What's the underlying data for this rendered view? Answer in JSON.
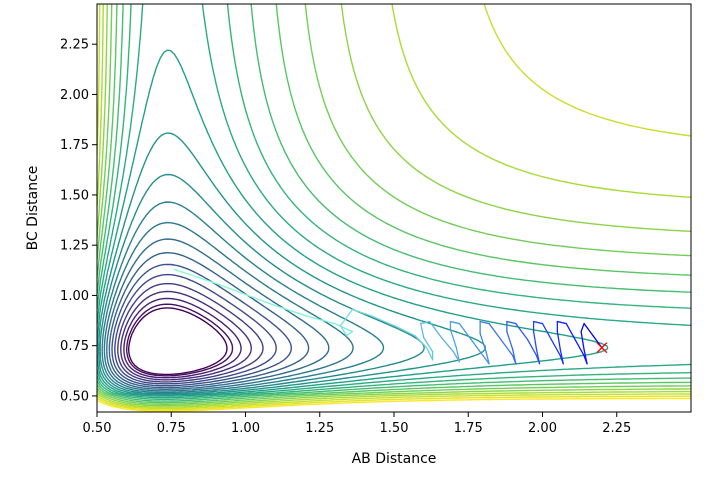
{
  "chart_data": {
    "type": "contour",
    "title": "",
    "xlabel": "AB Distance",
    "ylabel": "BC Distance",
    "xlim": [
      0.5,
      2.5
    ],
    "ylim": [
      0.42,
      2.45
    ],
    "xticks": [
      "0.50",
      "0.75",
      "1.00",
      "1.25",
      "1.50",
      "1.75",
      "2.00",
      "2.25"
    ],
    "yticks": [
      "0.50",
      "0.75",
      "1.00",
      "1.25",
      "1.50",
      "1.75",
      "2.00",
      "2.25"
    ],
    "grid": false,
    "legend": "none",
    "colormap": "viridis",
    "contour_levels": 24,
    "trajectory": {
      "start": [
        0.76,
        1.13
      ],
      "end": [
        2.2,
        0.74
      ],
      "marker": "x",
      "marker_color": "#ff0000",
      "color_start": "#7fffd4",
      "color_end": "#0000ff",
      "points": [
        [
          0.76,
          1.13
        ],
        [
          0.9,
          1.06
        ],
        [
          1.08,
          0.96
        ],
        [
          1.2,
          0.9
        ],
        [
          1.3,
          0.86
        ],
        [
          1.36,
          0.82
        ],
        [
          1.34,
          0.8
        ],
        [
          1.32,
          0.85
        ],
        [
          1.36,
          0.93
        ],
        [
          1.42,
          0.9
        ],
        [
          1.5,
          0.85
        ],
        [
          1.57,
          0.8
        ],
        [
          1.61,
          0.74
        ],
        [
          1.63,
          0.68
        ],
        [
          1.63,
          0.72
        ],
        [
          1.6,
          0.79
        ],
        [
          1.59,
          0.86
        ],
        [
          1.62,
          0.87
        ],
        [
          1.66,
          0.79
        ],
        [
          1.7,
          0.72
        ],
        [
          1.72,
          0.67
        ],
        [
          1.71,
          0.74
        ],
        [
          1.69,
          0.83
        ],
        [
          1.69,
          0.87
        ],
        [
          1.72,
          0.86
        ],
        [
          1.76,
          0.78
        ],
        [
          1.8,
          0.7
        ],
        [
          1.82,
          0.66
        ],
        [
          1.81,
          0.72
        ],
        [
          1.79,
          0.81
        ],
        [
          1.79,
          0.87
        ],
        [
          1.82,
          0.86
        ],
        [
          1.86,
          0.78
        ],
        [
          1.9,
          0.7
        ],
        [
          1.91,
          0.66
        ],
        [
          1.9,
          0.73
        ],
        [
          1.88,
          0.82
        ],
        [
          1.88,
          0.87
        ],
        [
          1.91,
          0.86
        ],
        [
          1.95,
          0.78
        ],
        [
          1.98,
          0.7
        ],
        [
          1.99,
          0.66
        ],
        [
          1.98,
          0.73
        ],
        [
          1.97,
          0.82
        ],
        [
          1.97,
          0.87
        ],
        [
          2.0,
          0.86
        ],
        [
          2.03,
          0.78
        ],
        [
          2.06,
          0.7
        ],
        [
          2.07,
          0.66
        ],
        [
          2.06,
          0.73
        ],
        [
          2.05,
          0.82
        ],
        [
          2.05,
          0.87
        ],
        [
          2.08,
          0.86
        ],
        [
          2.11,
          0.78
        ],
        [
          2.14,
          0.7
        ],
        [
          2.15,
          0.66
        ],
        [
          2.14,
          0.73
        ],
        [
          2.13,
          0.82
        ],
        [
          2.14,
          0.86
        ],
        [
          2.17,
          0.8
        ],
        [
          2.2,
          0.74
        ]
      ]
    }
  }
}
